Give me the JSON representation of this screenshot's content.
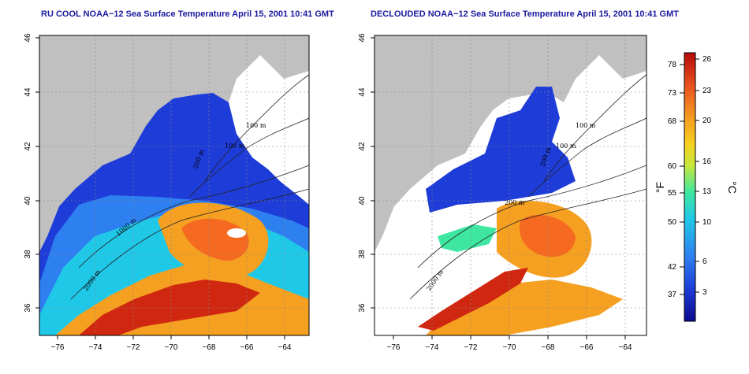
{
  "maps": [
    {
      "title": "RU COOL NOAA−12 Sea Surface Temperature April 15, 2001 10:41 GMT",
      "contour_labels": [
        "100 m",
        "100 m",
        "200 m",
        "1000 m",
        "2000 m"
      ]
    },
    {
      "title": "DECLOUDED NOAA−12 Sea Surface Temperature April 15, 2001 10:41 GMT",
      "contour_labels": [
        "100 m",
        "100 m",
        "200 m",
        "200 m",
        "2000 m"
      ]
    }
  ],
  "axes": {
    "lon_ticks": [
      "−76",
      "−74",
      "−72",
      "−70",
      "−68",
      "−66",
      "−64"
    ],
    "lat_ticks": [
      "36",
      "38",
      "40",
      "42",
      "44",
      "46"
    ]
  },
  "colorbar": {
    "fahrenheit_label": "°F",
    "celsius_label": "°C",
    "fahrenheit_ticks": [
      "78",
      "73",
      "68",
      "60",
      "55",
      "50",
      "42",
      "37"
    ],
    "celsius_ticks": [
      "26",
      "23",
      "20",
      "16",
      "13",
      "10",
      "6",
      "3"
    ],
    "colors": [
      "#0a0a8c",
      "#1e3cd7",
      "#2e7ff0",
      "#20c8e8",
      "#3ee6a0",
      "#c8e83c",
      "#f5d020",
      "#f59a20",
      "#e8501e",
      "#b40a0a"
    ],
    "land_color": "#c0c0c0"
  }
}
